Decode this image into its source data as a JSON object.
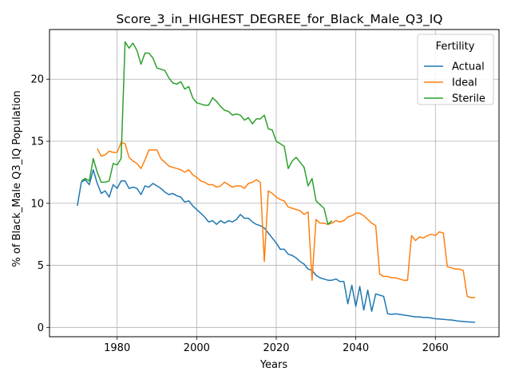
{
  "chart_data": {
    "type": "line",
    "title": "Score_3_in_HIGHEST_DEGREE_for_Black_Male_Q3_IQ",
    "xlabel": "Years",
    "ylabel": "% of Black_Male Q3_IQ Population",
    "xlim": [
      1963,
      2076
    ],
    "ylim": [
      -0.75,
      24.0
    ],
    "xticks": [
      1980,
      2000,
      2020,
      2040,
      2060
    ],
    "yticks": [
      0,
      5,
      10,
      15,
      20
    ],
    "grid": true,
    "legend": {
      "title": "Fertility",
      "placement": "top-right"
    },
    "series": [
      {
        "name": "Actual",
        "color": "#1f77b4",
        "x": [
          1970,
          1971,
          1972,
          1973,
          1974,
          1975,
          1976,
          1977,
          1978,
          1979,
          1980,
          1981,
          1982,
          1983,
          1984,
          1985,
          1986,
          1987,
          1988,
          1989,
          1990,
          1991,
          1992,
          1993,
          1994,
          1995,
          1996,
          1997,
          1998,
          1999,
          2000,
          2001,
          2002,
          2003,
          2004,
          2005,
          2006,
          2007,
          2008,
          2009,
          2010,
          2011,
          2012,
          2013,
          2014,
          2015,
          2016,
          2017,
          2018,
          2019,
          2020,
          2021,
          2022,
          2023,
          2024,
          2025,
          2026,
          2027,
          2028,
          2029,
          2030,
          2031,
          2032,
          2033,
          2034,
          2035,
          2036,
          2037,
          2038,
          2039,
          2040,
          2041,
          2042,
          2043,
          2044,
          2045,
          2046,
          2047,
          2048,
          2049,
          2050,
          2051,
          2052,
          2053,
          2054,
          2055,
          2056,
          2057,
          2058,
          2059,
          2060,
          2061,
          2062,
          2063,
          2064,
          2065,
          2066,
          2067,
          2068,
          2069,
          2070
        ],
        "values": [
          9.8,
          11.7,
          11.9,
          11.5,
          12.7,
          11.6,
          10.8,
          11.0,
          10.5,
          11.5,
          11.2,
          11.8,
          11.8,
          11.2,
          11.3,
          11.2,
          10.7,
          11.4,
          11.3,
          11.6,
          11.4,
          11.2,
          10.9,
          10.7,
          10.8,
          10.6,
          10.5,
          10.1,
          10.2,
          9.8,
          9.5,
          9.2,
          8.9,
          8.5,
          8.6,
          8.3,
          8.6,
          8.4,
          8.6,
          8.5,
          8.7,
          9.1,
          8.8,
          8.8,
          8.5,
          8.3,
          8.2,
          8.0,
          7.6,
          7.2,
          6.8,
          6.3,
          6.3,
          5.9,
          5.8,
          5.6,
          5.3,
          5.1,
          4.7,
          4.6,
          4.2,
          4.0,
          3.9,
          3.8,
          3.8,
          3.9,
          3.7,
          3.7,
          1.9,
          3.4,
          1.7,
          3.3,
          1.4,
          3.0,
          1.3,
          2.7,
          2.6,
          2.5,
          1.1,
          1.05,
          1.1,
          1.05,
          1.0,
          0.95,
          0.9,
          0.85,
          0.85,
          0.8,
          0.8,
          0.75,
          0.7,
          0.68,
          0.65,
          0.62,
          0.6,
          0.55,
          0.5,
          0.48,
          0.45,
          0.43,
          0.42
        ]
      },
      {
        "name": "Ideal",
        "color": "#ff7f0e",
        "x": [
          1975,
          1976,
          1977,
          1978,
          1979,
          1980,
          1981,
          1982,
          1983,
          1984,
          1985,
          1986,
          1987,
          1988,
          1989,
          1990,
          1991,
          1992,
          1993,
          1994,
          1995,
          1996,
          1997,
          1998,
          1999,
          2000,
          2001,
          2002,
          2003,
          2004,
          2005,
          2006,
          2007,
          2008,
          2009,
          2010,
          2011,
          2012,
          2013,
          2014,
          2015,
          2016,
          2017,
          2018,
          2019,
          2020,
          2021,
          2022,
          2023,
          2024,
          2025,
          2026,
          2027,
          2028,
          2029,
          2030,
          2031,
          2032,
          2033,
          2034,
          2035,
          2036,
          2037,
          2038,
          2039,
          2040,
          2041,
          2042,
          2043,
          2044,
          2045,
          2046,
          2047,
          2048,
          2049,
          2050,
          2051,
          2052,
          2053,
          2054,
          2055,
          2056,
          2057,
          2058,
          2059,
          2060,
          2061,
          2062,
          2063,
          2064,
          2065,
          2066,
          2067,
          2068,
          2069,
          2070
        ],
        "values": [
          14.4,
          13.8,
          13.9,
          14.2,
          14.1,
          14.1,
          14.9,
          14.8,
          13.7,
          13.4,
          13.2,
          12.8,
          13.5,
          14.3,
          14.3,
          14.3,
          13.6,
          13.3,
          13.0,
          12.9,
          12.8,
          12.7,
          12.5,
          12.7,
          12.3,
          12.1,
          11.8,
          11.7,
          11.5,
          11.5,
          11.3,
          11.4,
          11.7,
          11.5,
          11.3,
          11.4,
          11.4,
          11.2,
          11.6,
          11.7,
          11.9,
          11.7,
          5.3,
          11.0,
          10.8,
          10.5,
          10.3,
          10.2,
          9.7,
          9.6,
          9.5,
          9.4,
          9.1,
          9.3,
          3.8,
          8.7,
          8.4,
          8.4,
          8.3,
          8.4,
          8.6,
          8.5,
          8.6,
          8.9,
          9.0,
          9.2,
          9.2,
          9.0,
          8.7,
          8.4,
          8.2,
          4.3,
          4.1,
          4.1,
          4.0,
          4.0,
          3.9,
          3.8,
          3.8,
          7.4,
          7.0,
          7.3,
          7.2,
          7.4,
          7.5,
          7.4,
          7.7,
          7.6,
          4.9,
          4.8,
          4.7,
          4.7,
          4.6,
          2.5,
          2.4,
          2.4
        ]
      },
      {
        "name": "Sterile",
        "color": "#2ca02c",
        "x": [
          1971,
          1972,
          1973,
          1974,
          1975,
          1976,
          1977,
          1978,
          1979,
          1980,
          1981,
          1982,
          1983,
          1984,
          1985,
          1986,
          1987,
          1988,
          1989,
          1990,
          1991,
          1992,
          1993,
          1994,
          1995,
          1996,
          1997,
          1998,
          1999,
          2000,
          2001,
          2002,
          2003,
          2004,
          2005,
          2006,
          2007,
          2008,
          2009,
          2010,
          2011,
          2012,
          2013,
          2014,
          2015,
          2016,
          2017,
          2018,
          2019,
          2020,
          2021,
          2022,
          2023,
          2024,
          2025,
          2026,
          2027,
          2028,
          2029,
          2030,
          2031,
          2032,
          2033,
          2034
        ],
        "values": [
          11.8,
          12.0,
          11.8,
          13.6,
          12.5,
          11.7,
          11.7,
          11.8,
          13.2,
          13.1,
          13.6,
          23.0,
          22.5,
          22.9,
          22.3,
          21.2,
          22.1,
          22.1,
          21.7,
          20.9,
          20.8,
          20.7,
          20.1,
          19.7,
          19.6,
          19.8,
          19.2,
          19.4,
          18.5,
          18.1,
          18.0,
          17.9,
          17.9,
          18.5,
          18.2,
          17.8,
          17.5,
          17.4,
          17.1,
          17.2,
          17.1,
          16.7,
          16.9,
          16.4,
          16.8,
          16.8,
          17.1,
          16.0,
          15.9,
          15.0,
          14.8,
          14.6,
          12.8,
          13.4,
          13.7,
          13.3,
          12.9,
          11.4,
          12.0,
          10.2,
          9.9,
          9.6,
          8.3,
          8.6
        ]
      }
    ]
  }
}
